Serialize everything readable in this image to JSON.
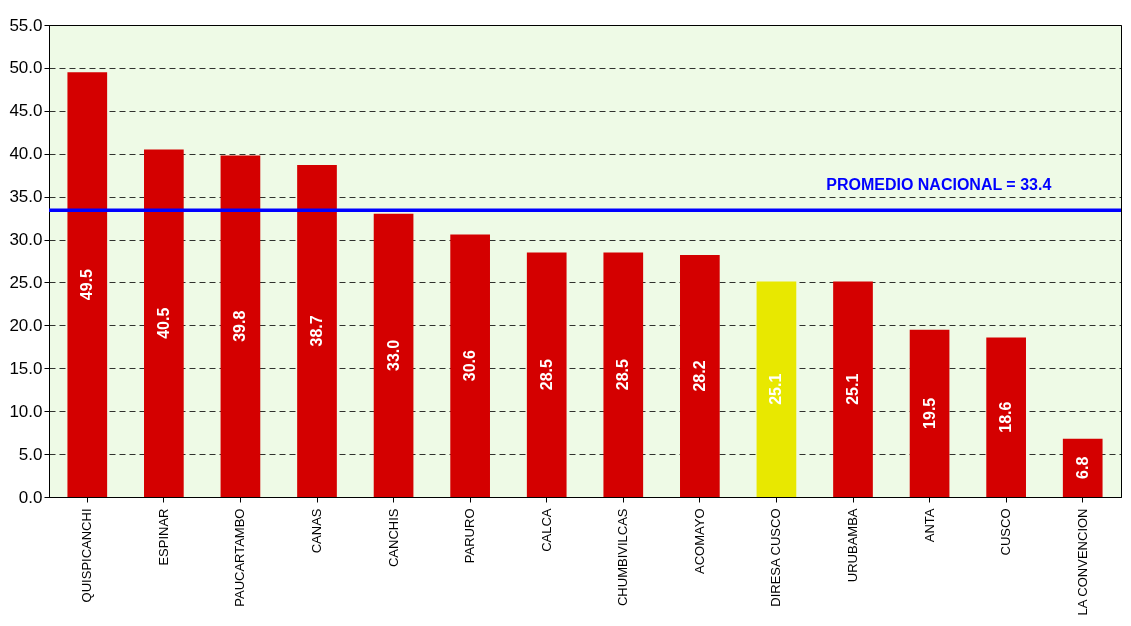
{
  "chart_data": {
    "type": "bar",
    "categories": [
      "QUISPICANCHI",
      "ESPINAR",
      "PAUCARTAMBO",
      "CANAS",
      "CANCHIS",
      "PARURO",
      "CALCA",
      "CHUMBIVILCAS",
      "ACOMAYO",
      "DIRESA CUSCO",
      "URUBAMBA",
      "ANTA",
      "CUSCO",
      "LA CONVENCION"
    ],
    "values": [
      49.5,
      40.5,
      39.8,
      38.7,
      33.0,
      30.6,
      28.5,
      28.5,
      28.2,
      25.1,
      25.1,
      19.5,
      18.6,
      6.8
    ],
    "colors": [
      "#d40000",
      "#d40000",
      "#d40000",
      "#d40000",
      "#d40000",
      "#d40000",
      "#d40000",
      "#d40000",
      "#d40000",
      "#e8e800",
      "#d40000",
      "#d40000",
      "#d40000",
      "#d40000"
    ],
    "ylim": [
      0,
      55
    ],
    "yticks": [
      {
        "value": 0,
        "label": "0.0"
      },
      {
        "value": 5,
        "label": "5.0"
      },
      {
        "value": 10,
        "label": "10.0"
      },
      {
        "value": 15,
        "label": "15.0"
      },
      {
        "value": 20,
        "label": "20.0"
      },
      {
        "value": 25,
        "label": "25.0"
      },
      {
        "value": 30,
        "label": "30.0"
      },
      {
        "value": 35,
        "label": "35.0"
      },
      {
        "value": 40,
        "label": "40.0"
      },
      {
        "value": 45,
        "label": "45.0"
      },
      {
        "value": 50,
        "label": "50.0"
      },
      {
        "value": 55,
        "label": "55.0"
      }
    ],
    "grid": "y",
    "value_labels": [
      "49.5",
      "40.5",
      "39.8",
      "38.7",
      "33.0",
      "30.6",
      "28.5",
      "28.5",
      "28.2",
      "25.1",
      "25.1",
      "19.5",
      "18.6",
      "6.8"
    ],
    "ref_lines": [
      {
        "axis": "y",
        "value": 33.4,
        "label": "PROMEDIO NACIONAL = 33.4",
        "color": "#0000ff"
      }
    ]
  }
}
